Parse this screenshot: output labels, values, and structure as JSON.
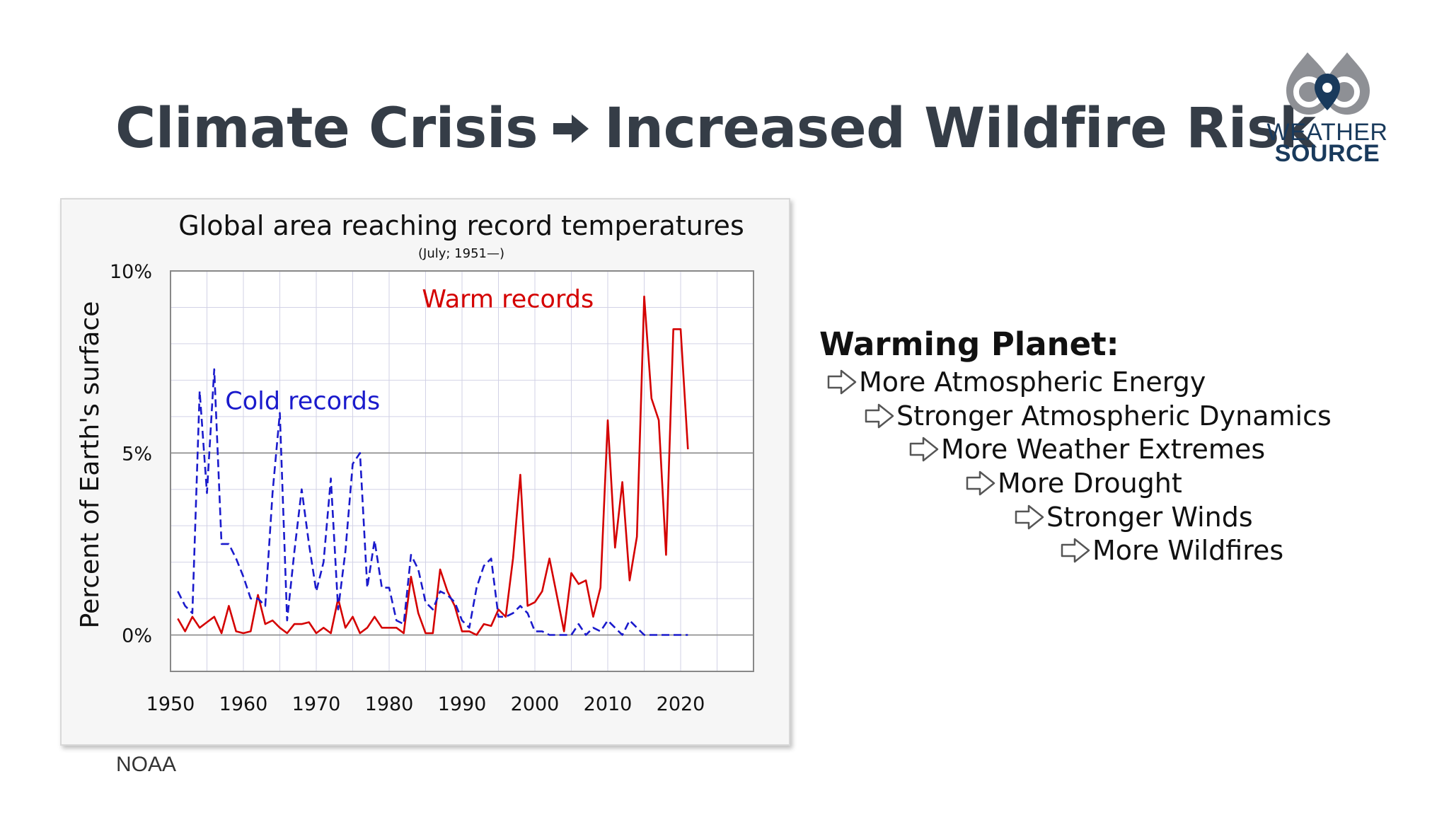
{
  "slide": {
    "title_left": "Climate Crisis",
    "title_right": "Increased Wildfire Risk",
    "source": "NOAA"
  },
  "logo": {
    "line1": "WEATHER",
    "line2": "SOURCE"
  },
  "bullets": {
    "heading": "Warming Planet:",
    "items": [
      "More Atmospheric Energy",
      "Stronger Atmospheric Dynamics",
      "More Weather Extremes",
      "More Drought",
      "Stronger Winds",
      "More Wildfires"
    ]
  },
  "chart_data": {
    "type": "line",
    "title": "Global area reaching record temperatures",
    "subtitle": "(July; 1951—)",
    "xlabel": "",
    "ylabel": "Percent of Earth's surface",
    "xlim": [
      1950,
      2030
    ],
    "ylim": [
      -1,
      10
    ],
    "x_ticks": [
      "1950",
      "1960",
      "1970",
      "1980",
      "1990",
      "2000",
      "2010",
      "2020"
    ],
    "y_ticks": [
      "0%",
      "5%",
      "10%"
    ],
    "grid": true,
    "series": [
      {
        "name": "Warm records",
        "color": "#d40000",
        "dash": "solid",
        "x": [
          1951,
          1952,
          1953,
          1954,
          1955,
          1956,
          1957,
          1958,
          1959,
          1960,
          1961,
          1962,
          1963,
          1964,
          1965,
          1966,
          1967,
          1968,
          1969,
          1970,
          1971,
          1972,
          1973,
          1974,
          1975,
          1976,
          1977,
          1978,
          1979,
          1980,
          1981,
          1982,
          1983,
          1984,
          1985,
          1986,
          1987,
          1988,
          1989,
          1990,
          1991,
          1992,
          1993,
          1994,
          1995,
          1996,
          1997,
          1998,
          1999,
          2000,
          2001,
          2002,
          2003,
          2004,
          2005,
          2006,
          2007,
          2008,
          2009,
          2010,
          2011,
          2012,
          2013,
          2014,
          2015,
          2016,
          2017,
          2018,
          2019,
          2020,
          2021
        ],
        "values": [
          0.45,
          0.1,
          0.5,
          0.2,
          0.35,
          0.5,
          0.05,
          0.8,
          0.1,
          0.05,
          0.1,
          1.1,
          0.3,
          0.4,
          0.2,
          0.05,
          0.3,
          0.3,
          0.35,
          0.05,
          0.2,
          0.05,
          1.0,
          0.2,
          0.5,
          0.05,
          0.2,
          0.5,
          0.2,
          0.2,
          0.2,
          0.05,
          1.6,
          0.6,
          0.05,
          0.05,
          1.8,
          1.2,
          0.8,
          0.1,
          0.1,
          0.0,
          0.3,
          0.25,
          0.7,
          0.5,
          2.1,
          4.4,
          0.8,
          0.9,
          1.2,
          2.1,
          1.1,
          0.1,
          1.7,
          1.4,
          1.5,
          0.5,
          1.3,
          5.9,
          2.4,
          4.2,
          1.5,
          2.7,
          9.3,
          6.5,
          5.9,
          2.2,
          8.4,
          8.4,
          5.1
        ]
      },
      {
        "name": "Cold records",
        "color": "#1a1acc",
        "dash": "dashed",
        "x": [
          1951,
          1952,
          1953,
          1954,
          1955,
          1956,
          1957,
          1958,
          1959,
          1960,
          1961,
          1962,
          1963,
          1964,
          1965,
          1966,
          1967,
          1968,
          1969,
          1970,
          1971,
          1972,
          1973,
          1974,
          1975,
          1976,
          1977,
          1978,
          1979,
          1980,
          1981,
          1982,
          1983,
          1984,
          1985,
          1986,
          1987,
          1988,
          1989,
          1990,
          1991,
          1992,
          1993,
          1994,
          1995,
          1996,
          1997,
          1998,
          1999,
          2000,
          2001,
          2002,
          2003,
          2004,
          2005,
          2006,
          2007,
          2008,
          2009,
          2010,
          2011,
          2012,
          2013,
          2014,
          2015,
          2016,
          2017,
          2018,
          2019,
          2020,
          2021
        ],
        "values": [
          1.2,
          0.8,
          0.6,
          6.7,
          3.9,
          7.3,
          2.5,
          2.5,
          2.1,
          1.6,
          1.0,
          1.0,
          0.8,
          3.9,
          6.1,
          0.4,
          2.3,
          4.0,
          2.5,
          1.2,
          2.0,
          4.3,
          0.7,
          2.3,
          4.7,
          5.0,
          1.3,
          2.6,
          1.3,
          1.3,
          0.4,
          0.3,
          2.2,
          1.8,
          0.9,
          0.7,
          1.2,
          1.1,
          0.9,
          0.4,
          0.2,
          1.3,
          1.9,
          2.1,
          0.5,
          0.5,
          0.6,
          0.8,
          0.6,
          0.1,
          0.1,
          0.0,
          0.0,
          0.0,
          0.0,
          0.3,
          0.0,
          0.2,
          0.1,
          0.4,
          0.2,
          0.0,
          0.4,
          0.2,
          0.0,
          0.0,
          0.0,
          0.0,
          0.0,
          0.0,
          0.0
        ]
      }
    ],
    "annotations": [
      {
        "text": "Warm records",
        "color": "#d40000"
      },
      {
        "text": "Cold records",
        "color": "#1a1acc"
      }
    ]
  }
}
